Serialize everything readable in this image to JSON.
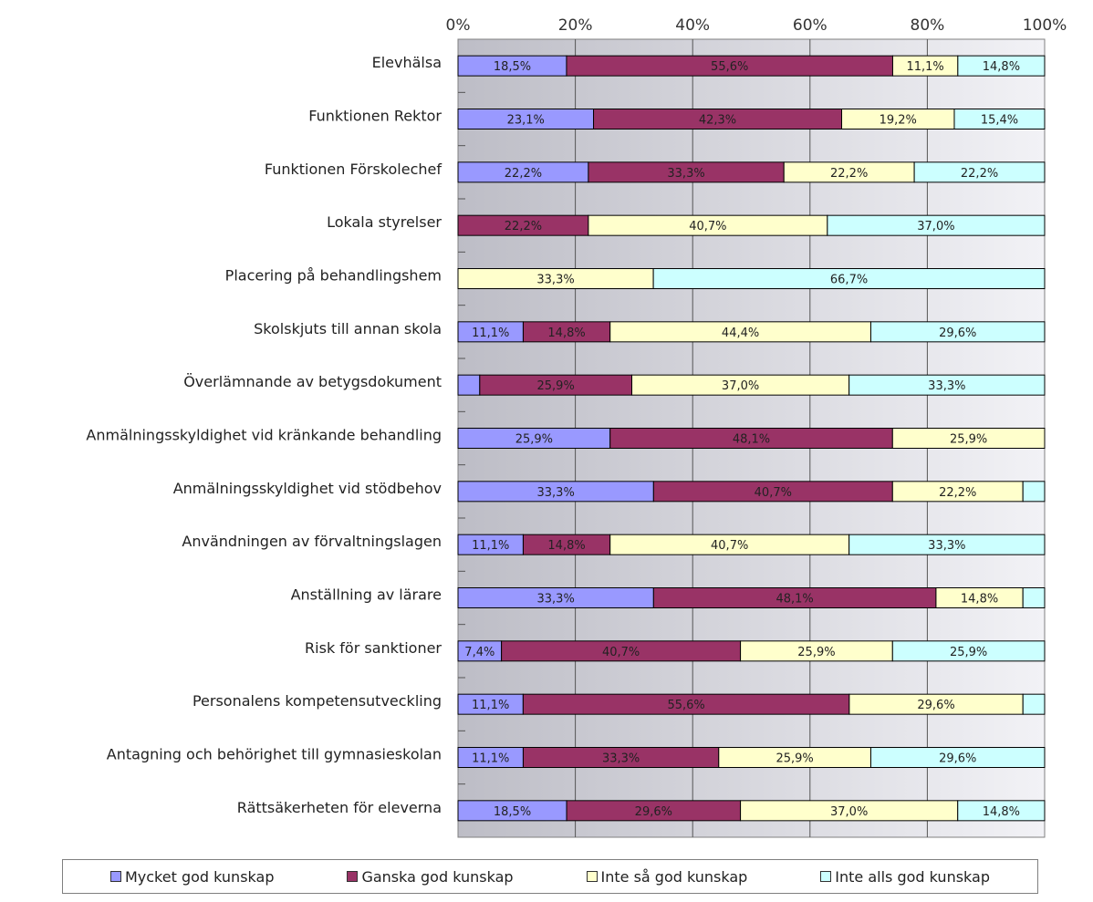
{
  "chart_data": {
    "type": "bar",
    "orientation": "horizontal",
    "stacked": "percent",
    "xlim": [
      0,
      100
    ],
    "x_ticks": [
      "0%",
      "20%",
      "40%",
      "60%",
      "80%",
      "100%"
    ],
    "categories": [
      "Elevhälsa",
      "Funktionen Rektor",
      "Funktionen Förskolechef",
      "Lokala styrelser",
      "Placering på behandlingshem",
      "Skolskjuts till annan skola",
      "Överlämnande av betygsdokument",
      "Anmälningsskyldighet vid kränkande behandling",
      "Anmälningsskyldighet vid stödbehov",
      "Användningen av förvaltningslagen",
      "Anställning av lärare",
      "Risk för sanktioner",
      "Personalens kompetensutveckling",
      "Antagning och behörighet till gymnasieskolan",
      "Rättsäkerheten för eleverna"
    ],
    "series": [
      {
        "name": "Mycket god kunskap",
        "color": "#9999ff",
        "values": [
          18.5,
          23.1,
          22.2,
          0,
          0,
          11.1,
          3.7,
          25.9,
          33.3,
          11.1,
          33.3,
          7.4,
          11.1,
          11.1,
          18.5
        ],
        "labels": [
          "18,5%",
          "23,1%",
          "22,2%",
          "",
          "",
          "11,1%",
          "",
          "25,9%",
          "33,3%",
          "11,1%",
          "33,3%",
          "7,4%",
          "11,1%",
          "11,1%",
          "18,5%"
        ]
      },
      {
        "name": "Ganska god kunskap",
        "color": "#993366",
        "values": [
          55.6,
          42.3,
          33.3,
          22.2,
          0,
          14.8,
          25.9,
          48.1,
          40.7,
          14.8,
          48.1,
          40.7,
          55.6,
          33.3,
          29.6
        ],
        "labels": [
          "55,6%",
          "42,3%",
          "33,3%",
          "22,2%",
          "",
          "14,8%",
          "25,9%",
          "48,1%",
          "40,7%",
          "14,8%",
          "48,1%",
          "40,7%",
          "55,6%",
          "33,3%",
          "29,6%"
        ]
      },
      {
        "name": "Inte så god kunskap",
        "color": "#ffffcc",
        "values": [
          11.1,
          19.2,
          22.2,
          40.7,
          33.3,
          44.4,
          37.0,
          25.9,
          22.2,
          40.7,
          14.8,
          25.9,
          29.6,
          25.9,
          37.0
        ],
        "labels": [
          "11,1%",
          "19,2%",
          "22,2%",
          "40,7%",
          "33,3%",
          "44,4%",
          "37,0%",
          "25,9%",
          "22,2%",
          "40,7%",
          "14,8%",
          "25,9%",
          "29,6%",
          "25,9%",
          "37,0%"
        ]
      },
      {
        "name": "Inte alls god kunskap",
        "color": "#ccffff",
        "values": [
          14.8,
          15.4,
          22.2,
          37.0,
          66.7,
          29.6,
          33.3,
          0,
          3.7,
          33.3,
          3.7,
          25.9,
          3.7,
          29.6,
          14.8
        ],
        "labels": [
          "14,8%",
          "15,4%",
          "22,2%",
          "37,0%",
          "66,7%",
          "29,6%",
          "33,3%",
          "",
          "",
          "33,3%",
          "",
          "25,9%",
          "",
          "29,6%",
          "14,8%"
        ]
      }
    ],
    "grid": true,
    "legend_position": "bottom",
    "plot_background": "#c0c0c0"
  }
}
